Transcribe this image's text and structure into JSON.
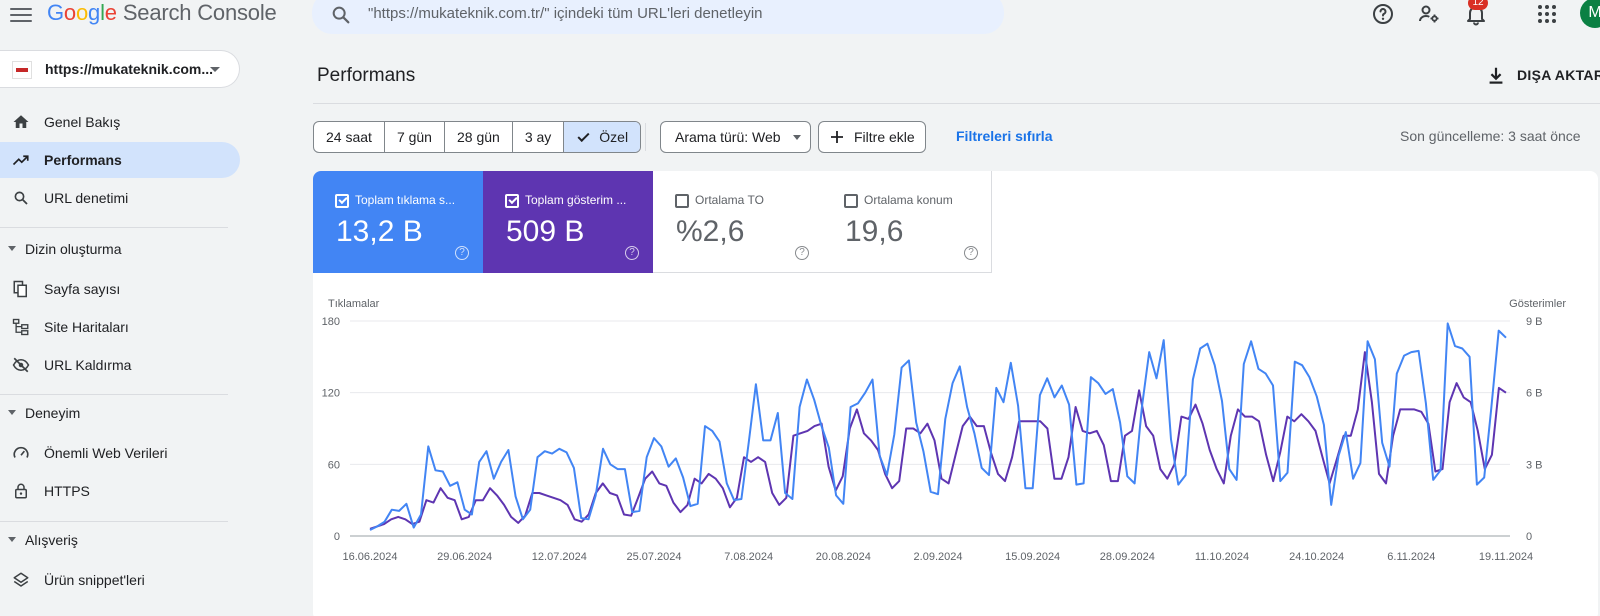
{
  "app": {
    "brand_letters": [
      "G",
      "o",
      "o",
      "g",
      "l",
      "e"
    ],
    "product": "Search Console"
  },
  "search": {
    "placeholder": "\"https://mukateknik.com.tr/\" içindeki tüm URL'leri denetleyin"
  },
  "top_icons": {
    "help": "help-icon",
    "users": "manage-users-icon",
    "notifications": "notifications-icon",
    "notifications_count": "12",
    "apps": "apps-grid-icon",
    "avatar_initial": "M"
  },
  "sidebar": {
    "property": "https://mukateknik.com...",
    "items": [
      {
        "label": "Genel Bakış",
        "icon": "home-icon",
        "active": false
      },
      {
        "label": "Performans",
        "icon": "trending-up-icon",
        "active": true
      },
      {
        "label": "URL denetimi",
        "icon": "search-icon",
        "active": false
      }
    ],
    "sections": [
      {
        "label": "Dizin oluşturma",
        "items": [
          {
            "label": "Sayfa sayısı",
            "icon": "pages-icon"
          },
          {
            "label": "Site Haritaları",
            "icon": "sitemap-icon"
          },
          {
            "label": "URL Kaldırma",
            "icon": "visibility-off-icon"
          }
        ]
      },
      {
        "label": "Deneyim",
        "items": [
          {
            "label": "Önemli Web Verileri",
            "icon": "speed-icon"
          },
          {
            "label": "HTTPS",
            "icon": "lock-icon"
          }
        ]
      },
      {
        "label": "Alışveriş",
        "items": [
          {
            "label": "Ürün snippet'leri",
            "icon": "layers-icon"
          }
        ]
      }
    ]
  },
  "main": {
    "title": "Performans",
    "export_label": "DIŞA AKTAR",
    "date_ranges": [
      "24 saat",
      "7 gün",
      "28 gün",
      "3 ay",
      "Özel"
    ],
    "selected_range": "Özel",
    "search_type": "Arama türü: Web",
    "add_filter": "Filtre ekle",
    "reset_filters": "Filtreleri sıfırla",
    "last_updated": "Son güncelleme: 3 saat önce"
  },
  "metrics": [
    {
      "label": "Toplam tıklama s...",
      "value": "13,2 B",
      "checked": true,
      "color": "#4285f4"
    },
    {
      "label": "Toplam gösterim ...",
      "value": "509 B",
      "checked": true,
      "color": "#5e35b1"
    },
    {
      "label": "Ortalama TO",
      "value": "%2,6",
      "checked": false
    },
    {
      "label": "Ortalama konum",
      "value": "19,6",
      "checked": false
    }
  ],
  "chart_data": {
    "type": "line",
    "ylabel_left": "Tıklamalar",
    "ylabel_right": "Gösterimler",
    "y_left_ticks": [
      "0",
      "60",
      "120",
      "180"
    ],
    "y_right_ticks": [
      "0",
      "3 B",
      "6 B",
      "9 B"
    ],
    "ylim_left": [
      0,
      180
    ],
    "ylim_right": [
      0,
      9000
    ],
    "x_tick_labels": [
      "16.06.2024",
      "29.06.2024",
      "12.07.2024",
      "25.07.2024",
      "7.08.2024",
      "20.08.2024",
      "2.09.2024",
      "15.09.2024",
      "28.09.2024",
      "11.10.2024",
      "24.10.2024",
      "6.11.2024",
      "19.11.2024"
    ],
    "grid": true,
    "series": [
      {
        "name": "Tıklamalar",
        "axis": "left",
        "color": "#4285f4",
        "values": [
          5,
          8,
          12,
          22,
          21,
          27,
          7,
          18,
          75,
          55,
          54,
          42,
          45,
          22,
          18,
          62,
          71,
          48,
          62,
          72,
          33,
          14,
          22,
          66,
          71,
          69,
          73,
          70,
          57,
          15,
          14,
          34,
          73,
          60,
          56,
          56,
          20,
          21,
          66,
          82,
          75,
          58,
          65,
          49,
          25,
          27,
          92,
          88,
          79,
          44,
          30,
          31,
          78,
          127,
          80,
          80,
          103,
          36,
          31,
          108,
          131,
          114,
          92,
          74,
          34,
          27,
          108,
          111,
          120,
          131,
          67,
          51,
          85,
          141,
          147,
          95,
          71,
          37,
          35,
          98,
          128,
          142,
          108,
          86,
          57,
          51,
          124,
          112,
          145,
          109,
          40,
          40,
          118,
          132,
          116,
          126,
          110,
          43,
          44,
          133,
          128,
          119,
          123,
          95,
          50,
          44,
          108,
          154,
          132,
          164,
          81,
          43,
          51,
          131,
          157,
          161,
          143,
          113,
          56,
          47,
          144,
          163,
          140,
          136,
          126,
          46,
          53,
          146,
          143,
          133,
          117,
          93,
          26,
          67,
          87,
          48,
          61,
          163,
          148,
          78,
          58,
          136,
          151,
          154,
          155,
          111,
          47,
          55,
          178,
          159,
          157,
          150,
          43,
          49,
          108,
          172,
          166
        ]
      },
      {
        "name": "Gösterimler",
        "axis": "right",
        "color": "#5e35b1",
        "values": [
          300,
          400,
          500,
          700,
          800,
          700,
          500,
          600,
          1500,
          1400,
          2000,
          1600,
          1500,
          700,
          800,
          1500,
          1500,
          2000,
          1700,
          1300,
          800,
          550,
          850,
          1800,
          1800,
          1700,
          1600,
          1500,
          1300,
          700,
          600,
          900,
          1800,
          2200,
          1800,
          1700,
          900,
          850,
          1600,
          2400,
          2700,
          2200,
          2100,
          1400,
          1000,
          1300,
          2400,
          2200,
          2600,
          2400,
          2000,
          1200,
          1600,
          3300,
          3100,
          3300,
          3100,
          1800,
          1300,
          1600,
          4200,
          4300,
          4400,
          4600,
          4700,
          2900,
          1900,
          2500,
          4500,
          5300,
          4300,
          4000,
          3600,
          2600,
          2000,
          2300,
          4500,
          4500,
          4300,
          4700,
          4000,
          2400,
          2200,
          3400,
          4600,
          5000,
          4600,
          4600,
          3500,
          2600,
          2300,
          3300,
          4800,
          4800,
          4800,
          4800,
          4500,
          2400,
          2400,
          3300,
          5400,
          4400,
          4300,
          4400,
          3800,
          2300,
          2300,
          4200,
          4400,
          6100,
          4600,
          4200,
          2800,
          2400,
          3000,
          5000,
          4900,
          5500,
          4700,
          3600,
          2800,
          2200,
          4200,
          5300,
          5000,
          5000,
          4800,
          3400,
          2300,
          3500,
          5000,
          4800,
          5100,
          4800,
          4400,
          3300,
          2200,
          3200,
          4200,
          4200,
          5300,
          7700,
          5600,
          2600,
          2200,
          4200,
          5300,
          5300,
          5300,
          5200,
          4700,
          2700,
          2800,
          5600,
          6400,
          5800,
          5600,
          4400,
          2800,
          3400,
          6200,
          6000
        ]
      }
    ]
  }
}
